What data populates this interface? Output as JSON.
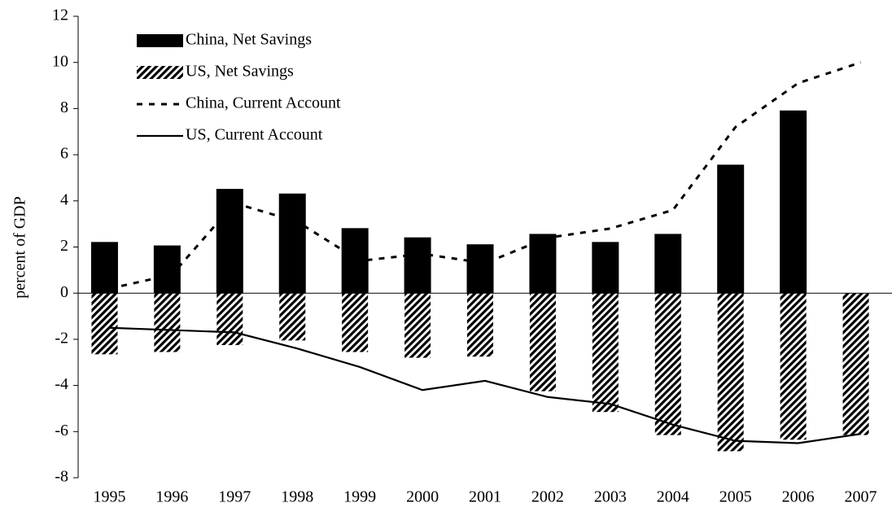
{
  "chart_data": {
    "type": "bar-line",
    "y_label": "percent of GDP",
    "categories": [
      "1995",
      "1996",
      "1997",
      "1998",
      "1999",
      "2000",
      "2001",
      "2002",
      "2003",
      "2004",
      "2005",
      "2006",
      "2007"
    ],
    "series": [
      {
        "name": "China, Net Savings",
        "kind": "bar",
        "style": "solid",
        "color": "#000000",
        "values": [
          2.2,
          2.05,
          4.5,
          4.3,
          2.8,
          2.4,
          2.1,
          2.55,
          2.2,
          2.55,
          5.55,
          7.9,
          null
        ]
      },
      {
        "name": "US, Net Savings",
        "kind": "bar",
        "style": "hatched",
        "color": "#000000",
        "values": [
          -2.65,
          -2.55,
          -2.25,
          -2.05,
          -2.55,
          -2.8,
          -2.75,
          -4.25,
          -5.15,
          -6.15,
          -6.85,
          -6.35,
          -6.15
        ]
      },
      {
        "name": "China, Current Account",
        "kind": "line",
        "style": "dashed",
        "color": "#000000",
        "values": [
          0.2,
          0.8,
          3.9,
          3.1,
          1.4,
          1.7,
          1.3,
          2.4,
          2.8,
          3.6,
          7.2,
          9.1,
          10.0
        ]
      },
      {
        "name": "US, Current Account",
        "kind": "line",
        "style": "solid",
        "color": "#000000",
        "values": [
          -1.5,
          -1.6,
          -1.7,
          -2.4,
          -3.2,
          -4.2,
          -3.8,
          -4.5,
          -4.8,
          -5.7,
          -6.4,
          -6.5,
          -6.1
        ]
      }
    ],
    "ylim": [
      -8,
      12
    ],
    "yticks": [
      -8,
      -6,
      -4,
      -2,
      0,
      2,
      4,
      6,
      8,
      10,
      12
    ],
    "legend": "top-left",
    "grid": false
  }
}
